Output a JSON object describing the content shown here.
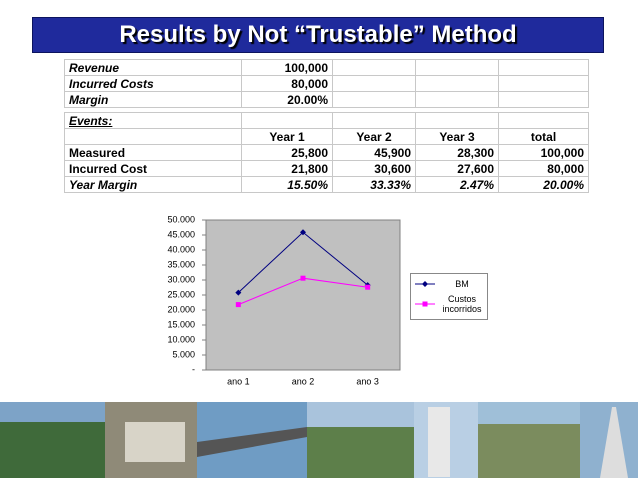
{
  "header": {
    "title": "Results by Not “Trustable” Method"
  },
  "table": {
    "summary": [
      [
        "Revenue",
        "100,000"
      ],
      [
        "Incurred Costs",
        "80,000"
      ],
      [
        "Margin",
        "20.00%"
      ]
    ],
    "events_title": "Events:",
    "columns": [
      "Year 1",
      "Year 2",
      "Year 3",
      "total"
    ],
    "rows": [
      [
        "Measured",
        "25,800",
        "45,900",
        "28,300",
        "100,000"
      ],
      [
        "Incurred Cost",
        "21,800",
        "30,600",
        "27,600",
        "80,000"
      ],
      [
        "Year Margin",
        "15.50%",
        "33.33%",
        "2.47%",
        "20.00%"
      ]
    ]
  },
  "chart_data": {
    "type": "line",
    "categories": [
      "ano 1",
      "ano 2",
      "ano 3"
    ],
    "series": [
      {
        "name": "BM",
        "color": "#000080",
        "values": [
          25800,
          45900,
          28300
        ]
      },
      {
        "name": "Custos incorridos",
        "color": "#ff00ff",
        "values": [
          21800,
          30600,
          27600
        ]
      }
    ],
    "ylim": [
      0,
      50000
    ],
    "yticks": [
      {
        "value": 0,
        "label": "-"
      },
      {
        "value": 5000,
        "label": "5.000"
      },
      {
        "value": 10000,
        "label": "10.000"
      },
      {
        "value": 15000,
        "label": "15.000"
      },
      {
        "value": 20000,
        "label": "20.000"
      },
      {
        "value": 25000,
        "label": "25.000"
      },
      {
        "value": 30000,
        "label": "30.000"
      },
      {
        "value": 35000,
        "label": "35.000"
      },
      {
        "value": 40000,
        "label": "40.000"
      },
      {
        "value": 45000,
        "label": "45.000"
      },
      {
        "value": 50000,
        "label": "50.000"
      }
    ],
    "grid": false
  }
}
